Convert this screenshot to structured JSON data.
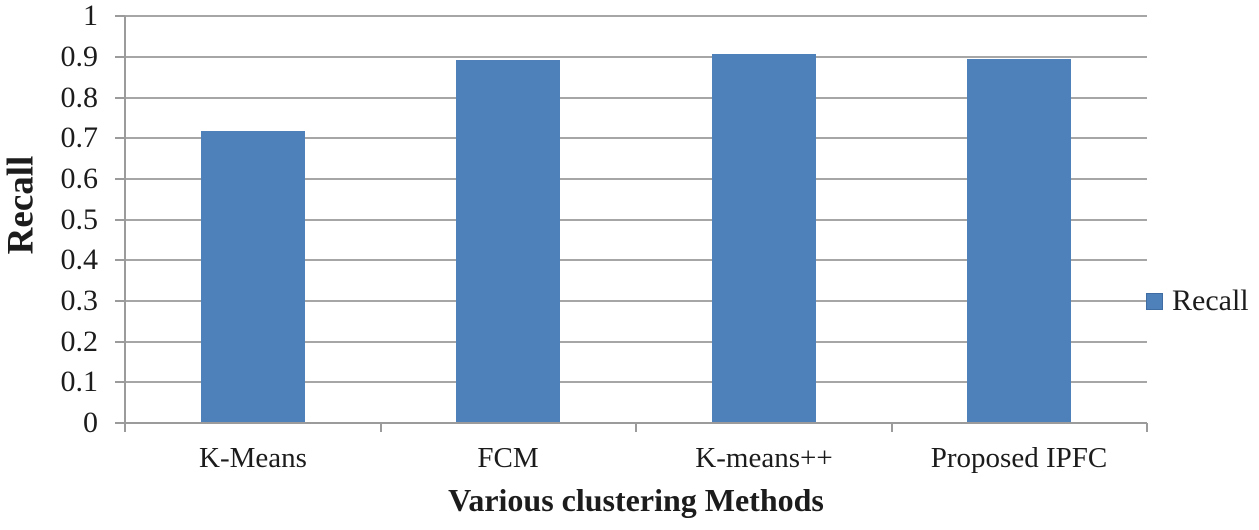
{
  "chart_data": {
    "type": "bar",
    "title": "",
    "categories": [
      "K-Means",
      "FCM",
      "K-means++",
      "Proposed IPFC"
    ],
    "values": [
      0.718,
      0.893,
      0.908,
      0.895
    ],
    "series": [
      {
        "name": "Recall",
        "values": [
          0.718,
          0.893,
          0.908,
          0.895
        ]
      }
    ],
    "xlabel": "Various clustering Methods",
    "ylabel": "Recall",
    "ylim": [
      0,
      1
    ],
    "ytick_step": 0.1,
    "ytick_labels": [
      "0",
      "0.1",
      "0.2",
      "0.3",
      "0.4",
      "0.5",
      "0.6",
      "0.7",
      "0.8",
      "0.9",
      "1"
    ],
    "grid": "horizontal",
    "legend": {
      "position": "right",
      "entries": [
        {
          "label": "Recall",
          "swatch_color": "#4E80BA"
        }
      ]
    },
    "colors": {
      "bar": "#4E80BA",
      "bar_border": "#3E6CA3",
      "gridline": "#A6A6A6",
      "axis": "#9B9B9B",
      "text": "#1C1C1C",
      "background": "#FFFFFF"
    }
  }
}
